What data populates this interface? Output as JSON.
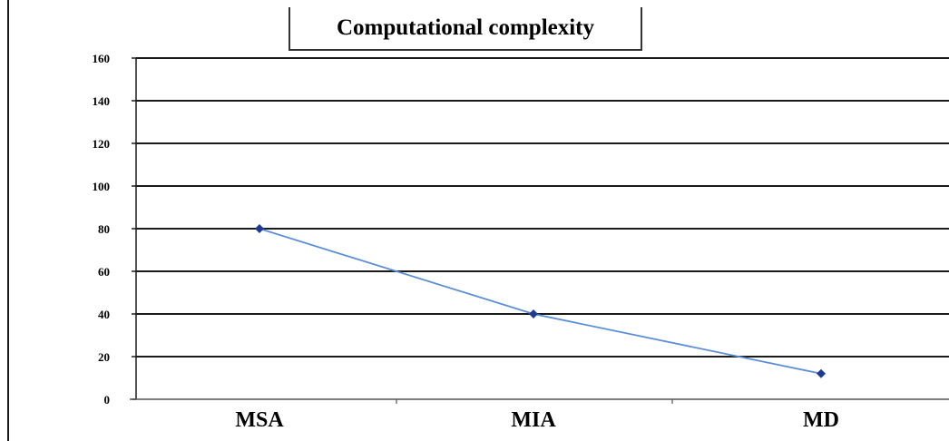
{
  "chart_data": {
    "type": "line",
    "title": "Computational complexity",
    "xlabel": "",
    "ylabel": "",
    "categories": [
      "MSA",
      "MIA",
      "MD"
    ],
    "series": [
      {
        "values": [
          80,
          40,
          12
        ],
        "color": "#5b8fd9",
        "marker_color": "#1f3a93"
      }
    ],
    "ylim": [
      0,
      160
    ],
    "yticks": [
      0,
      20,
      40,
      60,
      80,
      100,
      120,
      140,
      160
    ],
    "grid": true,
    "legend": "none"
  }
}
